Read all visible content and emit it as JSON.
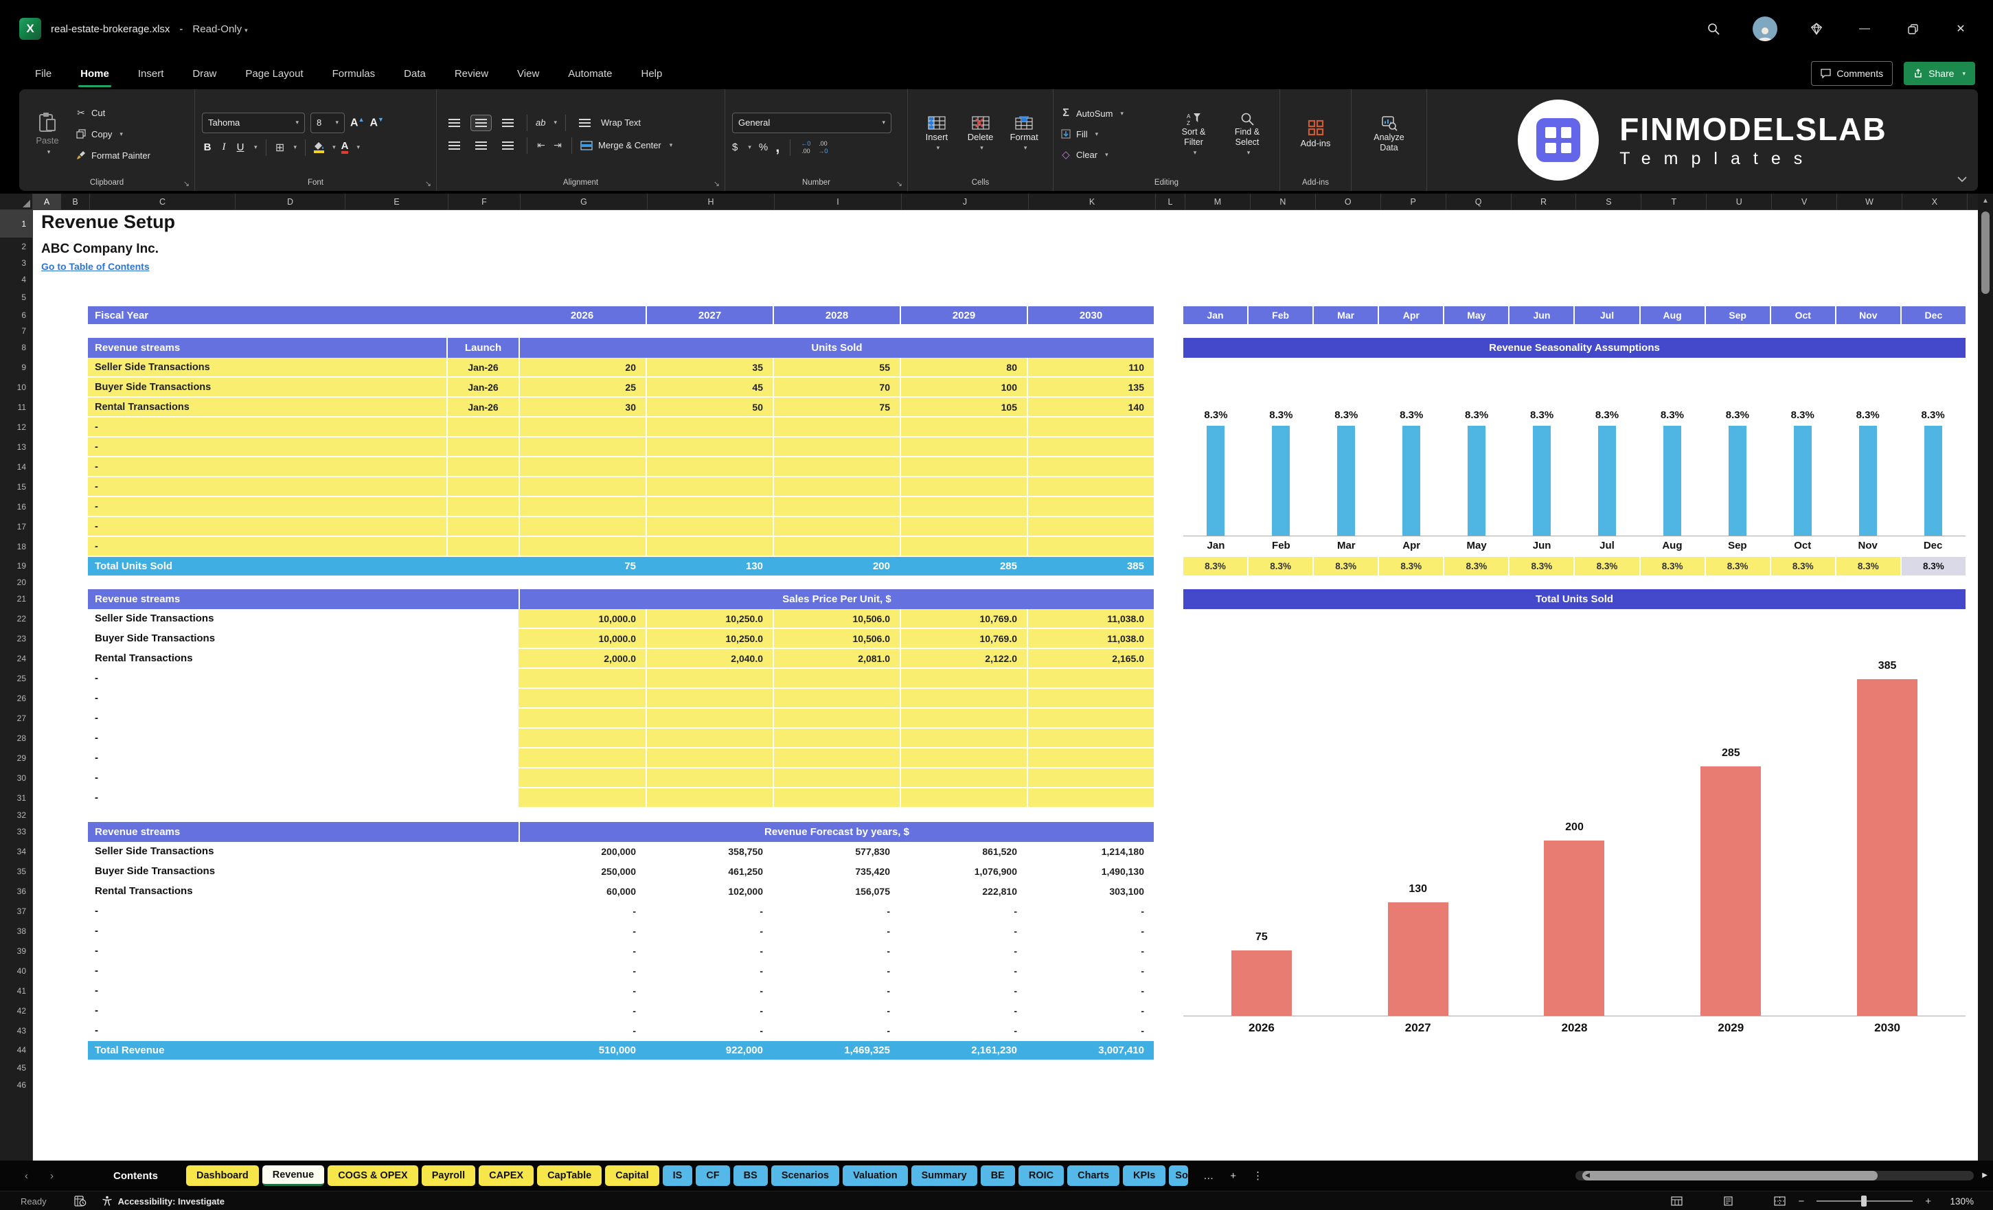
{
  "colors": {
    "header_purple": "#6471DF",
    "chart_title_purple": "#4448CB",
    "cell_yellow": "#FAEE71",
    "total_blue": "#3FAFE3",
    "bar_blue": "#4FB5E2",
    "bar_salmon": "#E97C72",
    "tab_yellow": "#F7E64A",
    "tab_blue": "#54B8E8",
    "share_green": "#1D8A4D",
    "accent_green": "#21A366",
    "dec_cell_lavender": "#D9D9E8",
    "link_blue": "#2E75D4"
  },
  "titlebar": {
    "filename": "real-estate-brokerage.xlsx",
    "separator": "-",
    "mode": "Read-Only"
  },
  "menu": {
    "items": [
      "File",
      "Home",
      "Insert",
      "Draw",
      "Page Layout",
      "Formulas",
      "Data",
      "Review",
      "View",
      "Automate",
      "Help"
    ],
    "active": "Home",
    "comments_label": "Comments",
    "share_label": "Share"
  },
  "ribbon": {
    "clipboard": {
      "paste": "Paste",
      "cut": "Cut",
      "copy": "Copy",
      "format_painter": "Format Painter",
      "label": "Clipboard"
    },
    "font": {
      "family": "Tahoma",
      "size": "8",
      "bold": "B",
      "italic": "I",
      "underline": "U",
      "label": "Font"
    },
    "alignment": {
      "orientation": "ab",
      "wrap": "Wrap Text",
      "merge": "Merge & Center",
      "label": "Alignment"
    },
    "number": {
      "format": "General",
      "currency": "$",
      "percent": "%",
      "comma": ",",
      "label": "Number"
    },
    "cells": {
      "insert": "Insert",
      "delete": "Delete",
      "format": "Format",
      "label": "Cells"
    },
    "editing": {
      "autosum": "AutoSum",
      "fill": "Fill",
      "clear": "Clear",
      "sort": "Sort & Filter",
      "find": "Find & Select",
      "label": "Editing"
    },
    "addins": {
      "addins": "Add-ins",
      "analyze": "Analyze Data",
      "label": "Add-ins"
    }
  },
  "brand": {
    "title": "FINMODELSLAB",
    "subtitle": "Templates"
  },
  "grid": {
    "columns": [
      "A",
      "B",
      "C",
      "D",
      "E",
      "F",
      "G",
      "H",
      "I",
      "J",
      "K",
      "L",
      "M",
      "N",
      "O",
      "P",
      "Q",
      "R",
      "S",
      "T",
      "U",
      "V",
      "W",
      "X"
    ],
    "row_count": 46,
    "selected_column": "A",
    "selected_row": "1"
  },
  "sheet": {
    "title": "Revenue Setup",
    "company": "ABC Company Inc.",
    "toc_link": "Go to Table of Contents",
    "placeholder": "-",
    "fiscal": {
      "label": "Fiscal Year",
      "years": [
        "2026",
        "2027",
        "2028",
        "2029",
        "2030"
      ]
    },
    "months": [
      "Jan",
      "Feb",
      "Mar",
      "Apr",
      "May",
      "Jun",
      "Jul",
      "Aug",
      "Sep",
      "Oct",
      "Nov",
      "Dec"
    ],
    "seasonality_values": [
      "8.3%",
      "8.3%",
      "8.3%",
      "8.3%",
      "8.3%",
      "8.3%",
      "8.3%",
      "8.3%",
      "8.3%",
      "8.3%",
      "8.3%",
      "8.3%"
    ],
    "units": {
      "header": "Revenue streams",
      "launch": "Launch",
      "merged": "Units Sold",
      "rows": [
        {
          "name": "Seller Side Transactions",
          "launch": "Jan-26",
          "values": [
            "20",
            "35",
            "55",
            "80",
            "110"
          ]
        },
        {
          "name": "Buyer Side Transactions",
          "launch": "Jan-26",
          "values": [
            "25",
            "45",
            "70",
            "100",
            "135"
          ]
        },
        {
          "name": "Rental Transactions",
          "launch": "Jan-26",
          "values": [
            "30",
            "50",
            "75",
            "105",
            "140"
          ]
        }
      ],
      "empty_count": 7,
      "total": {
        "label": "Total Units Sold",
        "values": [
          "75",
          "130",
          "200",
          "285",
          "385"
        ]
      }
    },
    "prices": {
      "header": "Revenue streams",
      "merged": "Sales Price Per Unit, $",
      "rows": [
        {
          "name": "Seller Side Transactions",
          "values": [
            "10,000.0",
            "10,250.0",
            "10,506.0",
            "10,769.0",
            "11,038.0"
          ]
        },
        {
          "name": "Buyer Side Transactions",
          "values": [
            "10,000.0",
            "10,250.0",
            "10,506.0",
            "10,769.0",
            "11,038.0"
          ]
        },
        {
          "name": "Rental Transactions",
          "values": [
            "2,000.0",
            "2,040.0",
            "2,081.0",
            "2,122.0",
            "2,165.0"
          ]
        }
      ],
      "empty_count": 7
    },
    "forecast": {
      "header": "Revenue streams",
      "merged": "Revenue Forecast by years, $",
      "rows": [
        {
          "name": "Seller Side Transactions",
          "values": [
            "200,000",
            "358,750",
            "577,830",
            "861,520",
            "1,214,180"
          ]
        },
        {
          "name": "Buyer Side Transactions",
          "values": [
            "250,000",
            "461,250",
            "735,420",
            "1,076,900",
            "1,490,130"
          ]
        },
        {
          "name": "Rental Transactions",
          "values": [
            "60,000",
            "102,000",
            "156,075",
            "222,810",
            "303,100"
          ]
        }
      ],
      "empty_count": 7,
      "total": {
        "label": "Total Revenue",
        "values": [
          "510,000",
          "922,000",
          "1,469,325",
          "2,161,230",
          "3,007,410"
        ]
      }
    }
  },
  "chart_data": [
    {
      "type": "bar",
      "title": "Revenue Seasonality Assumptions",
      "categories": [
        "Jan",
        "Feb",
        "Mar",
        "Apr",
        "May",
        "Jun",
        "Jul",
        "Aug",
        "Sep",
        "Oct",
        "Nov",
        "Dec"
      ],
      "values": [
        8.3,
        8.3,
        8.3,
        8.3,
        8.3,
        8.3,
        8.3,
        8.3,
        8.3,
        8.3,
        8.3,
        8.3
      ],
      "data_labels": [
        "8.3%",
        "8.3%",
        "8.3%",
        "8.3%",
        "8.3%",
        "8.3%",
        "8.3%",
        "8.3%",
        "8.3%",
        "8.3%",
        "8.3%",
        "8.3%"
      ],
      "unit": "%",
      "xlabel": "",
      "ylabel": "",
      "ylim": [
        0,
        9.2
      ],
      "grid": false,
      "legend": false,
      "bar_color": "#4FB5E2"
    },
    {
      "type": "bar",
      "title": "Total Units Sold",
      "categories": [
        "2026",
        "2027",
        "2028",
        "2029",
        "2030"
      ],
      "values": [
        75,
        130,
        200,
        285,
        385
      ],
      "data_labels": [
        "75",
        "130",
        "200",
        "285",
        "385"
      ],
      "xlabel": "",
      "ylabel": "",
      "ylim": [
        0,
        430
      ],
      "grid": false,
      "legend": false,
      "bar_color": "#E97C72"
    }
  ],
  "tabs": {
    "sheets": [
      {
        "label": "Contents",
        "style": "plain"
      },
      {
        "label": "Dashboard",
        "style": "yellow"
      },
      {
        "label": "Revenue",
        "style": "active"
      },
      {
        "label": "COGS & OPEX",
        "style": "yellow"
      },
      {
        "label": "Payroll",
        "style": "yellow"
      },
      {
        "label": "CAPEX",
        "style": "yellow"
      },
      {
        "label": "CapTable",
        "style": "yellow"
      },
      {
        "label": "Capital",
        "style": "yellow"
      },
      {
        "label": "IS",
        "style": "blue"
      },
      {
        "label": "CF",
        "style": "blue"
      },
      {
        "label": "BS",
        "style": "blue"
      },
      {
        "label": "Scenarios",
        "style": "blue"
      },
      {
        "label": "Valuation",
        "style": "blue"
      },
      {
        "label": "Summary",
        "style": "blue"
      },
      {
        "label": "BE",
        "style": "blue"
      },
      {
        "label": "ROIC",
        "style": "blue"
      },
      {
        "label": "Charts",
        "style": "blue"
      },
      {
        "label": "KPIs",
        "style": "blue"
      },
      {
        "label": "So",
        "style": "blue-clipped"
      }
    ],
    "more": "…",
    "add": "+",
    "menu": "⋮"
  },
  "statusbar": {
    "ready": "Ready",
    "accessibility": "Accessibility: Investigate",
    "zoom_out": "−",
    "zoom_in": "+",
    "zoom": "130%"
  }
}
